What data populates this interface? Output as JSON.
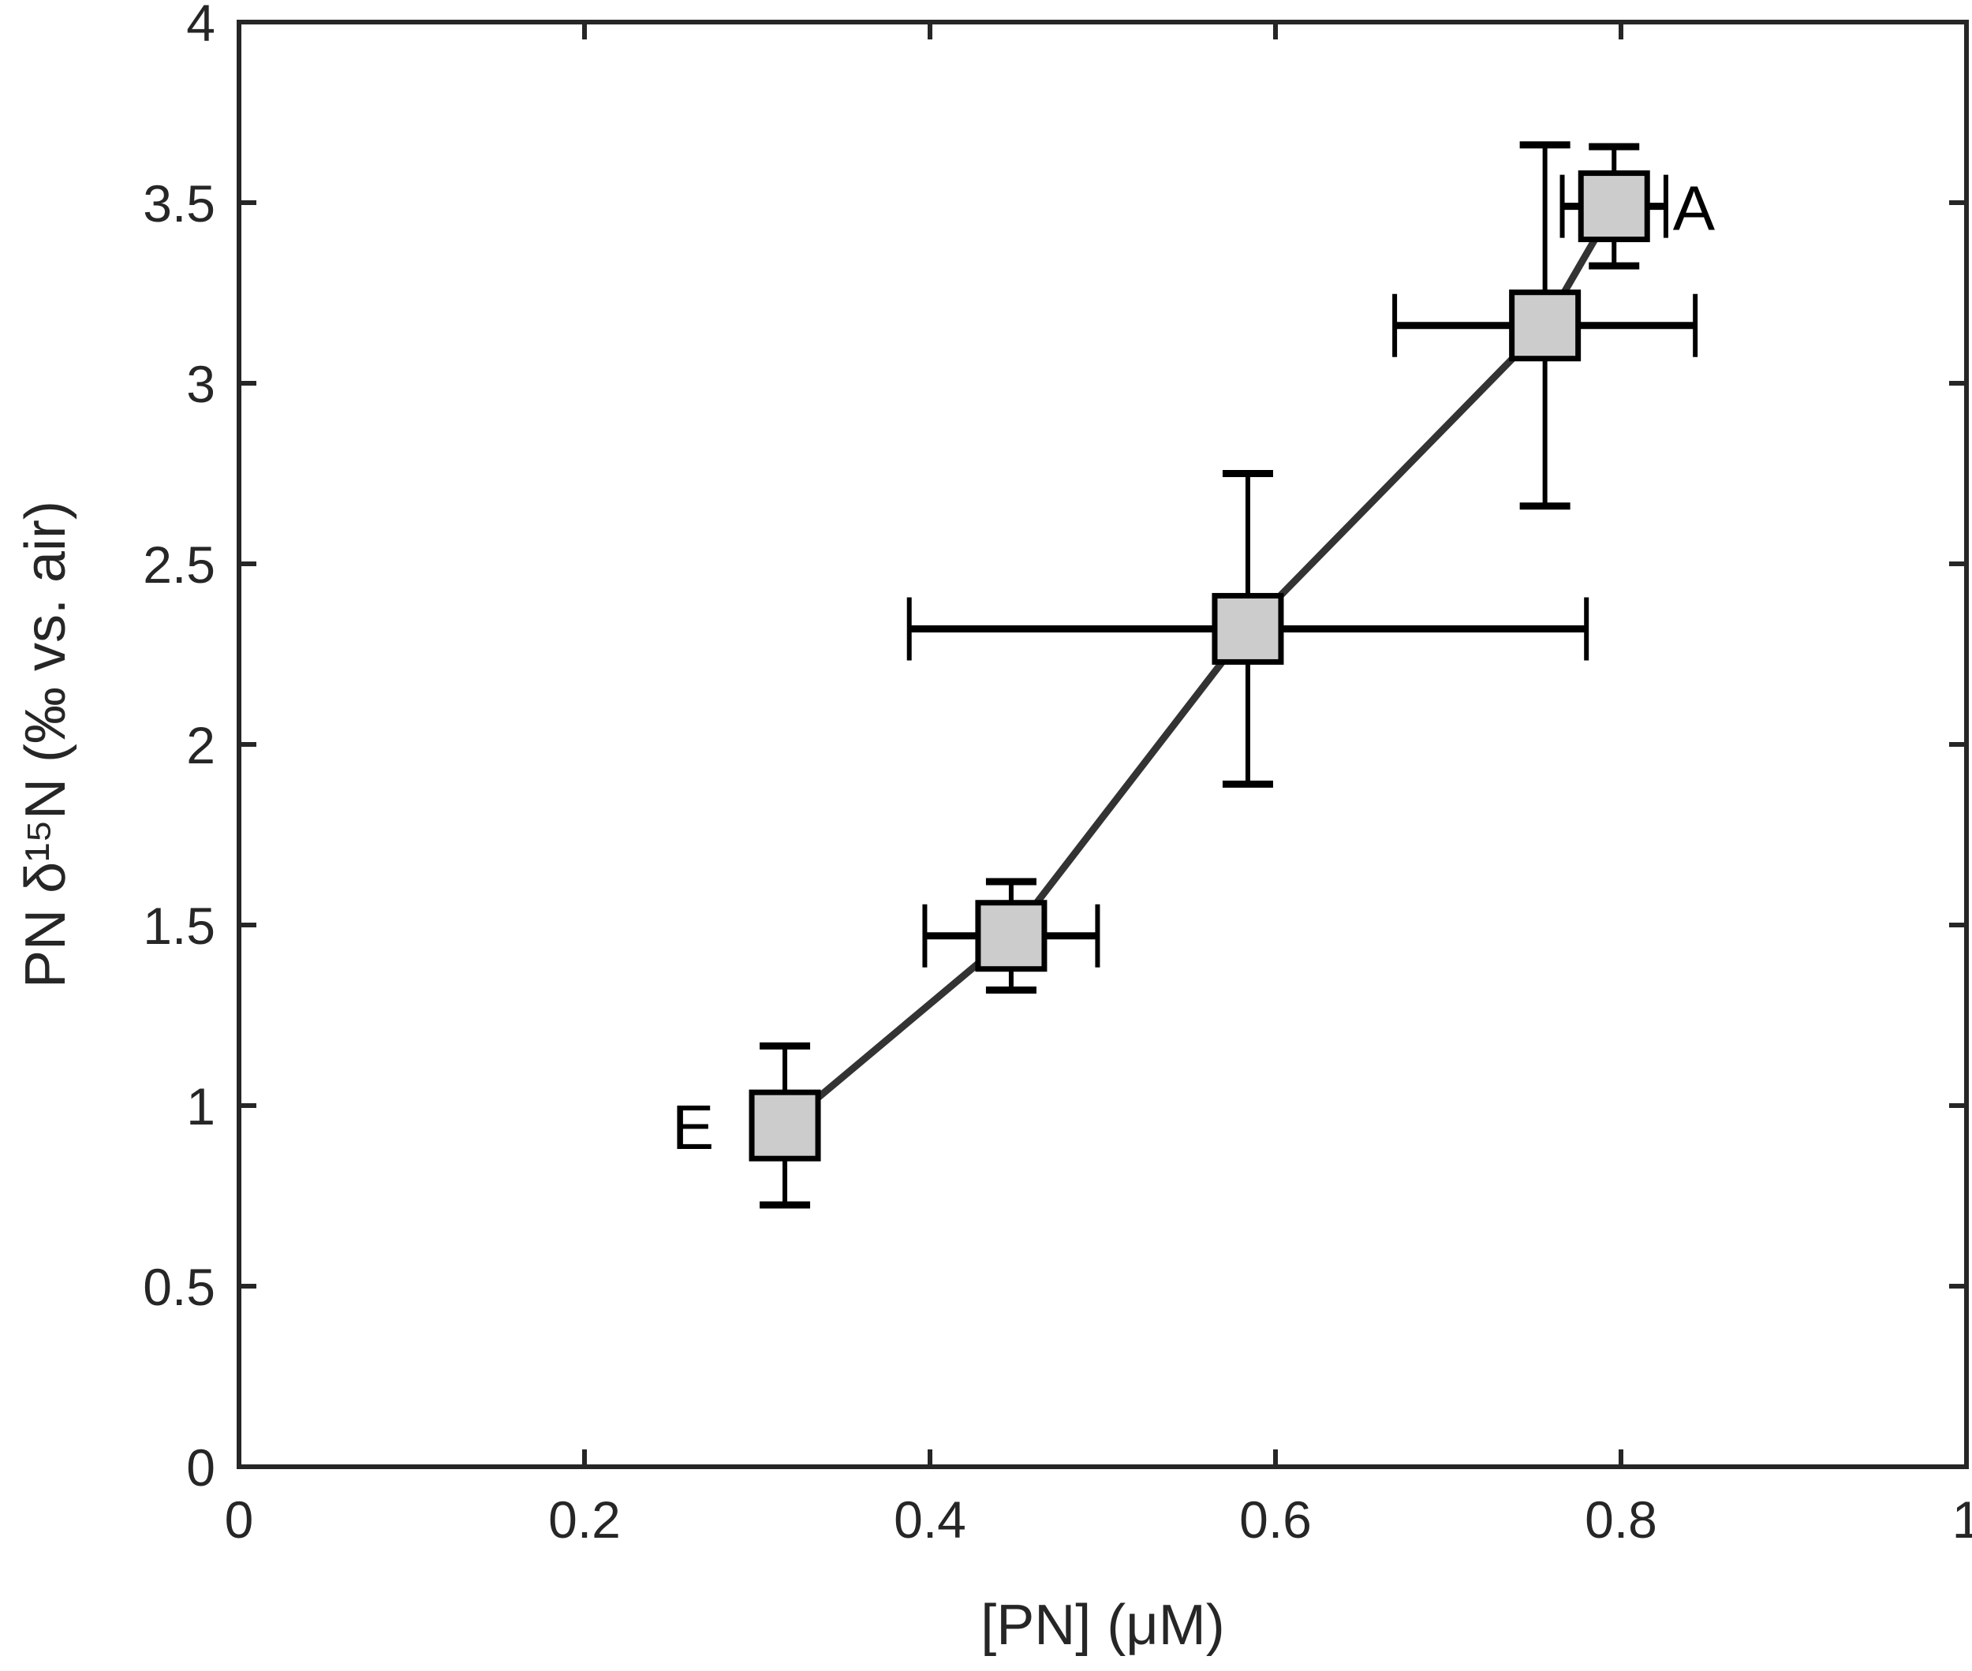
{
  "chart_data": {
    "type": "scatter",
    "title": "",
    "xlabel": "[PN] (μM)",
    "ylabel": "PN δ¹⁵N (‰ vs. air)",
    "xlim": [
      0,
      1
    ],
    "ylim": [
      0,
      4
    ],
    "xticks": [
      0,
      0.2,
      0.4,
      0.6,
      0.8,
      1
    ],
    "xtick_labels": [
      "0",
      "0.2",
      "0.4",
      "0.6",
      "0.8",
      "1"
    ],
    "yticks": [
      0,
      0.5,
      1,
      1.5,
      2,
      2.5,
      3,
      3.5,
      4
    ],
    "ytick_labels": [
      "0",
      "0.5",
      "1",
      "1.5",
      "2",
      "2.5",
      "3",
      "3.5",
      "4"
    ],
    "grid": false,
    "legend": null,
    "series": [
      {
        "name": "PN",
        "marker": "square",
        "line": true,
        "points": [
          {
            "x": 0.316,
            "y": 0.945,
            "xerr": 0.0,
            "yerr": 0.22,
            "label": "E"
          },
          {
            "x": 0.447,
            "y": 1.47,
            "xerr": 0.05,
            "yerr": 0.15,
            "label": ""
          },
          {
            "x": 0.584,
            "y": 2.32,
            "xerr": 0.196,
            "yerr": 0.43,
            "label": ""
          },
          {
            "x": 0.756,
            "y": 3.16,
            "xerr": 0.087,
            "yerr": 0.5,
            "label": ""
          },
          {
            "x": 0.796,
            "y": 3.49,
            "xerr": 0.03,
            "yerr": 0.165,
            "label": "A"
          }
        ]
      }
    ],
    "annotations": [
      {
        "text": "A",
        "x": 0.83,
        "y": 3.49
      },
      {
        "text": "E",
        "x": 0.275,
        "y": 0.945
      }
    ]
  },
  "style": {
    "axis_color": "#262626",
    "line_color": "#333333",
    "marker_face": "#cccccc",
    "marker_edge": "#000000",
    "errorbar_color": "#000000"
  }
}
